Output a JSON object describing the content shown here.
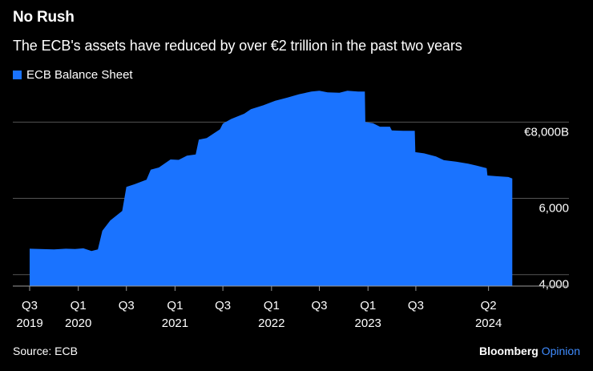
{
  "title": "No Rush",
  "subtitle": "The ECB's assets have reduced by over €2 trillion in the past two years",
  "legend": {
    "label": "ECB Balance Sheet"
  },
  "footer": {
    "source": "Source: ECB",
    "brand_main": "Bloomberg",
    "brand_sub": "Opinion"
  },
  "colors": {
    "series": "#1a73ff",
    "background": "#000000",
    "grid": "#555555",
    "text": "#ffffff"
  },
  "chart_data": {
    "type": "area",
    "title": "No Rush",
    "subtitle": "The ECB's assets have reduced by over €2 trillion in the past two years",
    "y_axis_side": "right",
    "ylim": [
      3700,
      9100
    ],
    "yticks": [
      {
        "value": 8000,
        "label": "€8,000B"
      },
      {
        "value": 6000,
        "label": "6,000"
      },
      {
        "value": 4000,
        "label": "4,000"
      }
    ],
    "xlim": [
      "2019-07-01",
      "2024-10-01"
    ],
    "xticks": [
      {
        "date": "2019-07-01",
        "quarter": "Q3",
        "year": "2019"
      },
      {
        "date": "2020-01-01",
        "quarter": "Q1",
        "year": "2020"
      },
      {
        "date": "2020-07-01",
        "quarter": "Q3",
        "year": ""
      },
      {
        "date": "2021-01-01",
        "quarter": "Q1",
        "year": "2021"
      },
      {
        "date": "2021-07-01",
        "quarter": "Q3",
        "year": ""
      },
      {
        "date": "2022-01-01",
        "quarter": "Q1",
        "year": "2022"
      },
      {
        "date": "2022-07-01",
        "quarter": "Q3",
        "year": ""
      },
      {
        "date": "2023-01-01",
        "quarter": "Q1",
        "year": "2023"
      },
      {
        "date": "2023-07-01",
        "quarter": "Q3",
        "year": ""
      },
      {
        "date": "2024-04-01",
        "quarter": "Q2",
        "year": "2024"
      }
    ],
    "series": [
      {
        "name": "ECB Balance Sheet",
        "color": "#1a73ff",
        "points": [
          [
            "2019-07-01",
            4680
          ],
          [
            "2019-10-01",
            4660
          ],
          [
            "2019-11-15",
            4680
          ],
          [
            "2019-12-20",
            4670
          ],
          [
            "2020-01-20",
            4690
          ],
          [
            "2020-02-20",
            4620
          ],
          [
            "2020-03-15",
            4660
          ],
          [
            "2020-04-01",
            5150
          ],
          [
            "2020-05-01",
            5420
          ],
          [
            "2020-06-15",
            5670
          ],
          [
            "2020-07-01",
            6300
          ],
          [
            "2020-08-01",
            6370
          ],
          [
            "2020-09-15",
            6490
          ],
          [
            "2020-10-01",
            6750
          ],
          [
            "2020-11-01",
            6810
          ],
          [
            "2020-12-15",
            7020
          ],
          [
            "2021-01-15",
            7010
          ],
          [
            "2021-02-15",
            7120
          ],
          [
            "2021-03-20",
            7150
          ],
          [
            "2021-04-01",
            7540
          ],
          [
            "2021-05-01",
            7580
          ],
          [
            "2021-06-20",
            7810
          ],
          [
            "2021-07-01",
            7960
          ],
          [
            "2021-08-01",
            8080
          ],
          [
            "2021-09-20",
            8220
          ],
          [
            "2021-10-15",
            8340
          ],
          [
            "2021-12-01",
            8440
          ],
          [
            "2022-01-15",
            8560
          ],
          [
            "2022-03-01",
            8640
          ],
          [
            "2022-04-15",
            8730
          ],
          [
            "2022-06-01",
            8800
          ],
          [
            "2022-07-01",
            8820
          ],
          [
            "2022-08-01",
            8780
          ],
          [
            "2022-09-15",
            8770
          ],
          [
            "2022-10-15",
            8820
          ],
          [
            "2022-11-25",
            8800
          ],
          [
            "2022-12-20",
            8800
          ],
          [
            "2022-12-22",
            8000
          ],
          [
            "2023-01-20",
            7970
          ],
          [
            "2023-02-15",
            7880
          ],
          [
            "2023-03-25",
            7880
          ],
          [
            "2023-04-01",
            7780
          ],
          [
            "2023-05-15",
            7770
          ],
          [
            "2023-06-27",
            7770
          ],
          [
            "2023-06-29",
            7210
          ],
          [
            "2023-08-01",
            7180
          ],
          [
            "2023-09-15",
            7100
          ],
          [
            "2023-10-15",
            7000
          ],
          [
            "2023-11-30",
            6960
          ],
          [
            "2024-01-15",
            6910
          ],
          [
            "2024-02-15",
            6860
          ],
          [
            "2024-03-25",
            6790
          ],
          [
            "2024-03-28",
            6600
          ],
          [
            "2024-05-01",
            6580
          ],
          [
            "2024-06-15",
            6560
          ],
          [
            "2024-06-30",
            6520
          ]
        ]
      }
    ],
    "grid": true,
    "legend_position": "top-left"
  }
}
